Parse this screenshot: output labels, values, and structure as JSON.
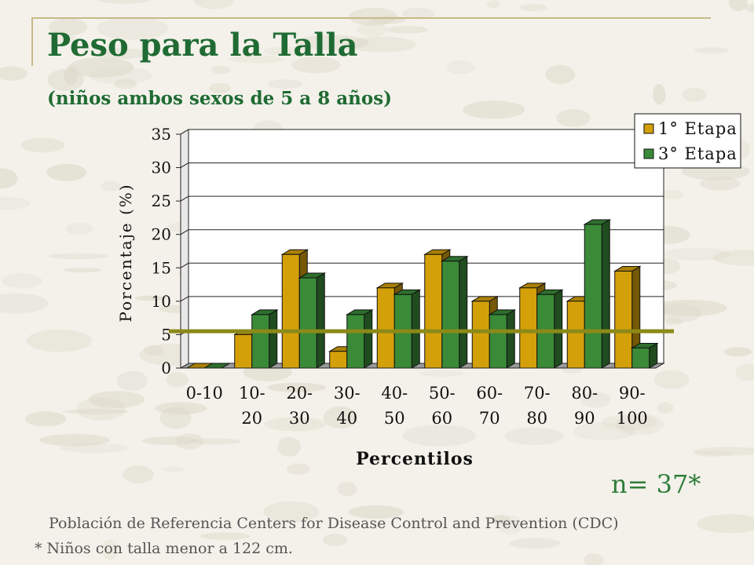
{
  "title": "Peso para la Talla",
  "subtitle": "(niños ambos sexos de 5 a 8 años)",
  "n_label": "n= 37*",
  "reference_note": "Población de Referencia Centers for Disease Control and Prevention (CDC)",
  "footnote": "* Niños con talla menor a 122 cm.",
  "colors": {
    "title": "#1f6b33",
    "series1": "#d4a00a",
    "series2": "#3a8a38",
    "reference_line": "#8c8a18"
  },
  "chart_data": {
    "type": "bar",
    "title": "",
    "xlabel": "Percentilos",
    "ylabel": "Porcentaje (%)",
    "ylim": [
      0,
      35
    ],
    "yticks": [
      0,
      5,
      10,
      15,
      20,
      25,
      30,
      35
    ],
    "grid": true,
    "legend_position": "top-right",
    "categories": [
      [
        "0-10"
      ],
      [
        "10-",
        "20"
      ],
      [
        "20-",
        "30"
      ],
      [
        "30-",
        "40"
      ],
      [
        "40-",
        "50"
      ],
      [
        "50-",
        "60"
      ],
      [
        "60-",
        "70"
      ],
      [
        "70-",
        "80"
      ],
      [
        "80-",
        "90"
      ],
      [
        "90-",
        "100"
      ]
    ],
    "series": [
      {
        "name": "1° Etapa",
        "values": [
          0,
          5,
          17,
          2.5,
          12,
          17,
          10,
          12,
          10,
          14.5
        ]
      },
      {
        "name": "3° Etapa",
        "values": [
          0,
          8,
          13.5,
          8,
          11,
          16,
          8,
          11,
          21.5,
          3
        ]
      }
    ],
    "reference_line_value": 5.5
  }
}
